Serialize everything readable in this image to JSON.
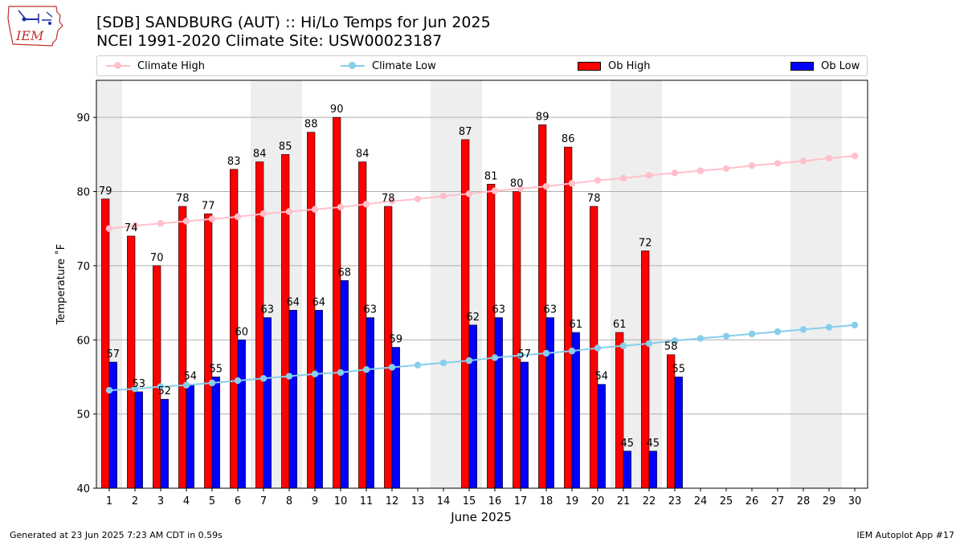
{
  "header": {
    "title_line1": "[SDB] SANDBURG (AUT) :: Hi/Lo Temps for Jun 2025",
    "title_line2": "NCEI 1991-2020 Climate Site: USW00023187",
    "logo_text": "IEM"
  },
  "footer": {
    "left": "Generated at 23 Jun 2025 7:23 AM CDT in 0.59s",
    "right": "IEM Autoplot App #17"
  },
  "colors": {
    "climate_high": "#ffc0cb",
    "climate_low": "#87ceeb",
    "ob_high": "#ff0000",
    "ob_low": "#0000ff",
    "weekend_shade": "#eeeeee",
    "grid": "#b0b0b0"
  },
  "legend": {
    "climate_high": "Climate High",
    "climate_low": "Climate Low",
    "ob_high": "Ob High",
    "ob_low": "Ob Low"
  },
  "chart_data": {
    "type": "bar",
    "title": "[SDB] SANDBURG (AUT) :: Hi/Lo Temps for Jun 2025",
    "xlabel": "June 2025",
    "ylabel": "Temperature ˚F",
    "ylim": [
      40,
      95
    ],
    "yticks": [
      40,
      50,
      60,
      70,
      80,
      90
    ],
    "grid": "horizontal",
    "legend_position": "top",
    "categories": [
      "1",
      "2",
      "3",
      "4",
      "5",
      "6",
      "7",
      "8",
      "9",
      "10",
      "11",
      "12",
      "13",
      "14",
      "15",
      "16",
      "17",
      "18",
      "19",
      "20",
      "21",
      "22",
      "23",
      "24",
      "25",
      "26",
      "27",
      "28",
      "29",
      "30"
    ],
    "weekend_days": [
      1,
      7,
      8,
      14,
      15,
      21,
      22,
      28,
      29
    ],
    "series": [
      {
        "name": "Ob High",
        "kind": "bar",
        "values": [
          79,
          74,
          70,
          78,
          77,
          83,
          84,
          85,
          88,
          90,
          84,
          78,
          null,
          null,
          87,
          81,
          80,
          89,
          86,
          78,
          61,
          72,
          58,
          null,
          null,
          null,
          null,
          null,
          null,
          null
        ]
      },
      {
        "name": "Ob Low",
        "kind": "bar",
        "values": [
          57,
          53,
          52,
          54,
          55,
          60,
          63,
          64,
          64,
          68,
          63,
          59,
          null,
          null,
          62,
          63,
          57,
          63,
          61,
          54,
          45,
          45,
          55,
          null,
          null,
          null,
          null,
          null,
          null,
          null
        ]
      },
      {
        "name": "Climate High",
        "kind": "line",
        "values": [
          75.0,
          75.4,
          75.7,
          76.0,
          76.3,
          76.6,
          77.0,
          77.3,
          77.6,
          77.9,
          78.3,
          78.7,
          79.0,
          79.4,
          79.7,
          80.1,
          80.4,
          80.7,
          81.1,
          81.5,
          81.8,
          82.2,
          82.5,
          82.8,
          83.1,
          83.5,
          83.8,
          84.1,
          84.5,
          84.8
        ]
      },
      {
        "name": "Climate Low",
        "kind": "line",
        "values": [
          53.2,
          53.4,
          53.7,
          53.9,
          54.2,
          54.5,
          54.8,
          55.1,
          55.4,
          55.6,
          56.0,
          56.3,
          56.6,
          56.9,
          57.2,
          57.6,
          57.9,
          58.2,
          58.5,
          58.9,
          59.2,
          59.5,
          59.9,
          60.2,
          60.5,
          60.8,
          61.1,
          61.4,
          61.7,
          62.0
        ]
      }
    ]
  }
}
